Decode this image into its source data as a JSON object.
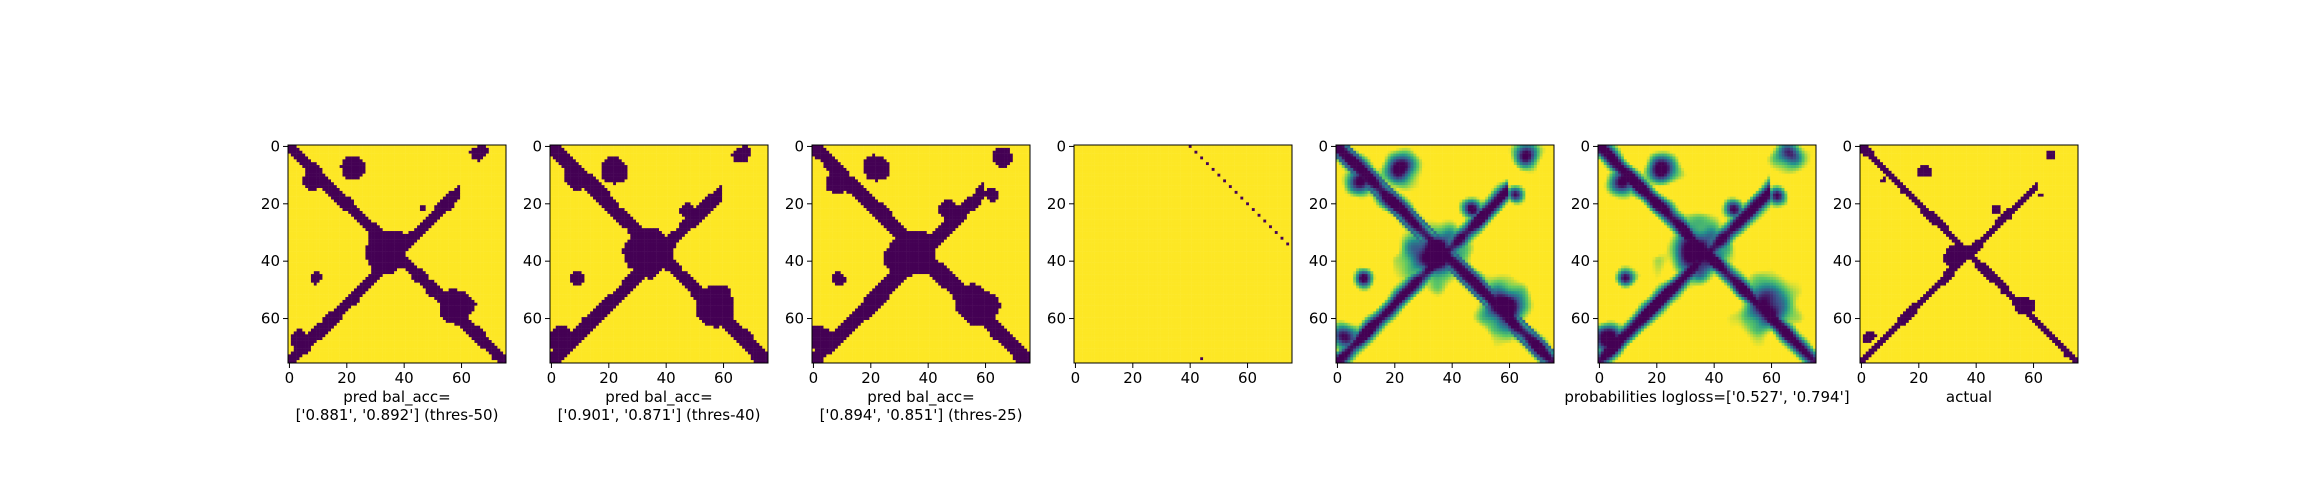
{
  "figure": {
    "colors": {
      "low": "#440154",
      "high": "#fde725",
      "mid1": "#21918c",
      "mid2": "#5ec962",
      "axis": "#000000"
    }
  },
  "chart_data": [
    {
      "type": "heatmap",
      "n": 76,
      "xticks": [
        0,
        20,
        40,
        60
      ],
      "yticks": [
        0,
        20,
        40,
        60
      ],
      "xlabel_lines": [
        "pred bal_acc=",
        "['0.881', '0.892'] (thres-50)"
      ],
      "pattern": "pred_thres50"
    },
    {
      "type": "heatmap",
      "n": 76,
      "xticks": [
        0,
        20,
        40,
        60
      ],
      "yticks": [
        0,
        20,
        40,
        60
      ],
      "xlabel_lines": [
        "pred bal_acc=",
        "['0.901', '0.871'] (thres-40)"
      ],
      "pattern": "pred_thres40"
    },
    {
      "type": "heatmap",
      "n": 76,
      "xticks": [
        0,
        20,
        40,
        60
      ],
      "yticks": [
        0,
        20,
        40,
        60
      ],
      "xlabel_lines": [
        "pred bal_acc=",
        "['0.894', '0.851'] (thres-25)"
      ],
      "pattern": "pred_thres25"
    },
    {
      "type": "heatmap",
      "n": 76,
      "xticks": [
        0,
        20,
        40,
        60
      ],
      "yticks": [
        0,
        20,
        40,
        60
      ],
      "xlabel_lines": [],
      "pattern": "sparse_diagonals"
    },
    {
      "type": "heatmap",
      "n": 76,
      "xticks": [
        0,
        20,
        40,
        60
      ],
      "yticks": [
        0,
        20,
        40,
        60
      ],
      "xlabel_lines": [],
      "pattern": "continuous_a"
    },
    {
      "type": "heatmap",
      "n": 76,
      "xticks": [
        0,
        20,
        40,
        60
      ],
      "yticks": [
        0,
        20,
        40,
        60
      ],
      "xlabel_lines": [
        "probabilities logloss=['0.527', '0.794']"
      ],
      "pattern": "continuous_b"
    },
    {
      "type": "heatmap",
      "n": 76,
      "xticks": [
        0,
        20,
        40,
        60
      ],
      "yticks": [
        0,
        20,
        40,
        60
      ],
      "xlabel_lines": [
        "actual"
      ],
      "pattern": "actual"
    }
  ]
}
